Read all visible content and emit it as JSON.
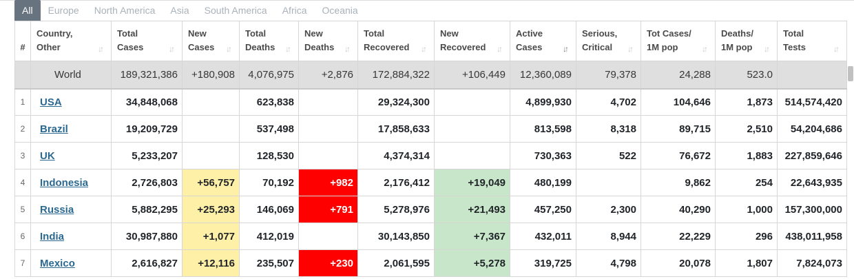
{
  "tabs": [
    {
      "label": "All",
      "active": true
    },
    {
      "label": "Europe",
      "active": false
    },
    {
      "label": "North America",
      "active": false
    },
    {
      "label": "Asia",
      "active": false
    },
    {
      "label": "South America",
      "active": false
    },
    {
      "label": "Africa",
      "active": false
    },
    {
      "label": "Oceania",
      "active": false
    }
  ],
  "table": {
    "headers": [
      {
        "key": "rank",
        "line1": "#",
        "line2": ""
      },
      {
        "key": "country",
        "line1": "Country,",
        "line2": "Other"
      },
      {
        "key": "total_cases",
        "line1": "Total",
        "line2": "Cases"
      },
      {
        "key": "new_cases",
        "line1": "New",
        "line2": "Cases"
      },
      {
        "key": "total_deaths",
        "line1": "Total",
        "line2": "Deaths"
      },
      {
        "key": "new_deaths",
        "line1": "New",
        "line2": "Deaths"
      },
      {
        "key": "total_recovered",
        "line1": "Total",
        "line2": "Recovered"
      },
      {
        "key": "new_recovered",
        "line1": "New",
        "line2": "Recovered"
      },
      {
        "key": "active_cases",
        "line1": "Active",
        "line2": "Cases"
      },
      {
        "key": "serious_critical",
        "line1": "Serious,",
        "line2": "Critical"
      },
      {
        "key": "cases_per_1m",
        "line1": "Tot Cases/",
        "line2": "1M pop"
      },
      {
        "key": "deaths_per_1m",
        "line1": "Deaths/",
        "line2": "1M pop"
      },
      {
        "key": "total_tests",
        "line1": "Total",
        "line2": "Tests"
      }
    ],
    "sort_icon": "sort-arrows-icon",
    "active_sort_column": "active_cases",
    "world": {
      "country": "World",
      "total_cases": "189,321,386",
      "new_cases": "+180,908",
      "total_deaths": "4,076,975",
      "new_deaths": "+2,876",
      "total_recovered": "172,884,322",
      "new_recovered": "+106,449",
      "active_cases": "12,360,089",
      "serious_critical": "79,378",
      "cases_per_1m": "24,288",
      "deaths_per_1m": "523.0",
      "total_tests": ""
    },
    "rows": [
      {
        "rank": "1",
        "country": "USA",
        "total_cases": "34,848,068",
        "new_cases": "",
        "total_deaths": "623,838",
        "new_deaths": "",
        "total_recovered": "29,324,300",
        "new_recovered": "",
        "active_cases": "4,899,930",
        "serious_critical": "4,702",
        "cases_per_1m": "104,646",
        "deaths_per_1m": "1,873",
        "total_tests": "514,574,420"
      },
      {
        "rank": "2",
        "country": "Brazil",
        "total_cases": "19,209,729",
        "new_cases": "",
        "total_deaths": "537,498",
        "new_deaths": "",
        "total_recovered": "17,858,633",
        "new_recovered": "",
        "active_cases": "813,598",
        "serious_critical": "8,318",
        "cases_per_1m": "89,715",
        "deaths_per_1m": "2,510",
        "total_tests": "54,204,686"
      },
      {
        "rank": "3",
        "country": "UK",
        "total_cases": "5,233,207",
        "new_cases": "",
        "total_deaths": "128,530",
        "new_deaths": "",
        "total_recovered": "4,374,314",
        "new_recovered": "",
        "active_cases": "730,363",
        "serious_critical": "522",
        "cases_per_1m": "76,672",
        "deaths_per_1m": "1,883",
        "total_tests": "227,859,646"
      },
      {
        "rank": "4",
        "country": "Indonesia",
        "total_cases": "2,726,803",
        "new_cases": "+56,757",
        "total_deaths": "70,192",
        "new_deaths": "+982",
        "total_recovered": "2,176,412",
        "new_recovered": "+19,049",
        "active_cases": "480,199",
        "serious_critical": "",
        "cases_per_1m": "9,862",
        "deaths_per_1m": "254",
        "total_tests": "22,643,935"
      },
      {
        "rank": "5",
        "country": "Russia",
        "total_cases": "5,882,295",
        "new_cases": "+25,293",
        "total_deaths": "146,069",
        "new_deaths": "+791",
        "total_recovered": "5,278,976",
        "new_recovered": "+21,493",
        "active_cases": "457,250",
        "serious_critical": "2,300",
        "cases_per_1m": "40,290",
        "deaths_per_1m": "1,000",
        "total_tests": "157,300,000"
      },
      {
        "rank": "6",
        "country": "India",
        "total_cases": "30,987,880",
        "new_cases": "+1,077",
        "total_deaths": "412,019",
        "new_deaths": "",
        "total_recovered": "30,143,850",
        "new_recovered": "+7,367",
        "active_cases": "432,011",
        "serious_critical": "8,944",
        "cases_per_1m": "22,229",
        "deaths_per_1m": "296",
        "total_tests": "438,011,958"
      },
      {
        "rank": "7",
        "country": "Mexico",
        "total_cases": "2,616,827",
        "new_cases": "+12,116",
        "total_deaths": "235,507",
        "new_deaths": "+230",
        "total_recovered": "2,061,595",
        "new_recovered": "+5,278",
        "active_cases": "319,725",
        "serious_critical": "4,798",
        "cases_per_1m": "20,078",
        "deaths_per_1m": "1,807",
        "total_tests": "7,824,073"
      }
    ]
  },
  "colors": {
    "new_cases_bg": "#fff0a8",
    "new_deaths_bg": "#ff0000",
    "new_recovered_bg": "#c8e6c9",
    "country_link": "#2b6990",
    "active_tab_bg": "#67737f"
  }
}
